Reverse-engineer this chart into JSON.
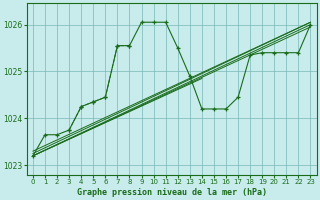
{
  "title": "Graphe pression niveau de la mer (hPa)",
  "background_color": "#c8ecec",
  "grid_color": "#7ab8b8",
  "line_color": "#1a6b1a",
  "ylim": [
    1022.8,
    1026.45
  ],
  "yticks": [
    1023,
    1024,
    1025,
    1026
  ],
  "x_ticks": [
    0,
    1,
    2,
    3,
    4,
    5,
    6,
    7,
    8,
    9,
    10,
    11,
    12,
    13,
    14,
    15,
    16,
    17,
    18,
    19,
    20,
    21,
    22,
    23
  ],
  "straight_lines": [
    [
      [
        0,
        14
      ],
      [
        1023.2,
        1024.85
      ]
    ],
    [
      [
        0,
        23
      ],
      [
        1023.2,
        1025.95
      ]
    ],
    [
      [
        0,
        23
      ],
      [
        1023.2,
        1026.0
      ]
    ],
    [
      [
        0,
        23
      ],
      [
        1023.25,
        1026.05
      ]
    ],
    [
      [
        0,
        23
      ],
      [
        1023.3,
        1026.05
      ]
    ]
  ],
  "main_series": {
    "x": [
      0,
      1,
      2,
      3,
      4,
      5,
      6,
      7,
      8,
      9,
      10,
      11,
      12,
      13,
      14,
      15,
      16,
      17,
      18,
      19,
      20,
      21,
      22,
      23
    ],
    "y": [
      1023.2,
      1023.65,
      1023.65,
      1023.75,
      1024.25,
      1024.35,
      1024.45,
      1025.55,
      1025.55,
      1026.05,
      1026.05,
      1026.05,
      1025.5,
      1024.9,
      1024.2,
      1024.2,
      1024.2,
      1024.45,
      1025.35,
      1025.4,
      1025.4,
      1025.4,
      1025.4,
      1026.0
    ]
  },
  "dotted_series": {
    "x": [
      3,
      4,
      5,
      6,
      7,
      8
    ],
    "y": [
      1023.75,
      1024.25,
      1024.35,
      1024.45,
      1025.55,
      1025.55
    ]
  }
}
